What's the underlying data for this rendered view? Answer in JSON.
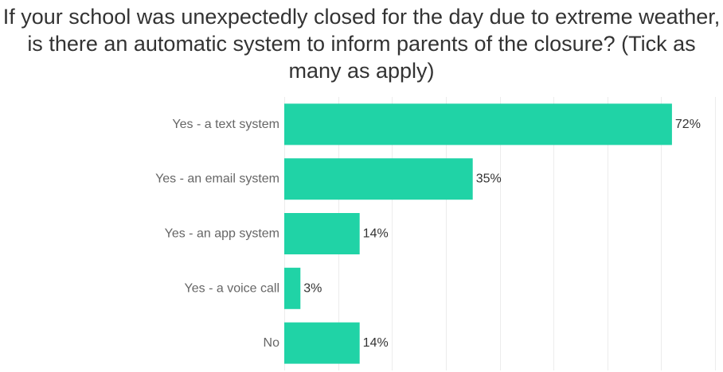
{
  "chart_data": {
    "type": "bar",
    "orientation": "horizontal",
    "title": "If your school was unexpectedly closed for the day due to extreme weather, is there an automatic system to inform parents of the closure? (Tick as many as apply)",
    "categories": [
      "Yes - a text system",
      "Yes - an email system",
      "Yes - an app system",
      "Yes - a voice call",
      "No"
    ],
    "values": [
      72,
      35,
      14,
      3,
      14
    ],
    "value_labels": [
      "72%",
      "35%",
      "14%",
      "3%",
      "14%"
    ],
    "xlim": [
      0,
      80
    ],
    "unit": "%",
    "grid": true,
    "legend": "none",
    "bar_color": "#20d3a6"
  }
}
